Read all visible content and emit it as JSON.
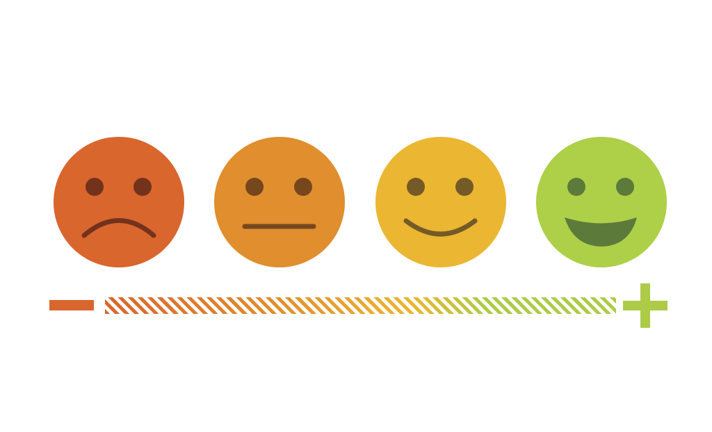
{
  "scale": {
    "faces": [
      {
        "mood": "sad",
        "face_color": "#d9662d",
        "feature_color": "#73321c"
      },
      {
        "mood": "neutral",
        "face_color": "#e08e2e",
        "feature_color": "#76471d"
      },
      {
        "mood": "happy",
        "face_color": "#ebb631",
        "feature_color": "#735a27"
      },
      {
        "mood": "very-happy",
        "face_color": "#aecf48",
        "feature_color": "#5c7a3a"
      }
    ],
    "minus_icon": "minus-icon",
    "plus_icon": "plus-icon",
    "colors": {
      "minus": "#d9662d",
      "plus": "#aecb48"
    }
  }
}
